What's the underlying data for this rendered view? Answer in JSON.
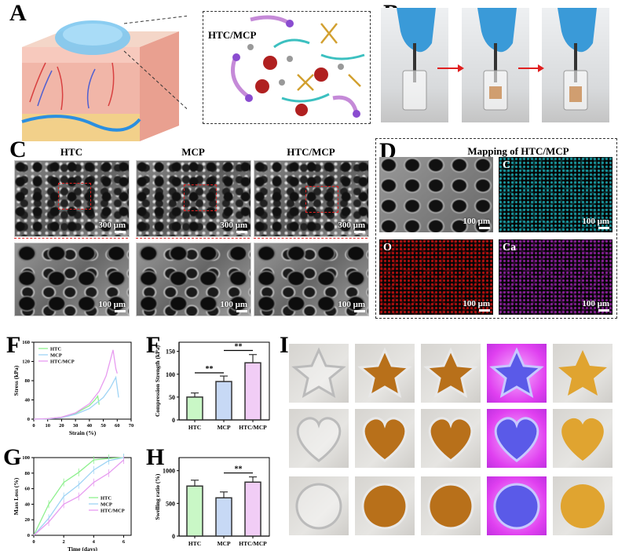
{
  "panels": {
    "A": "A",
    "B": "B",
    "C": "C",
    "D": "D",
    "F1": "F",
    "F2": "F",
    "G": "G",
    "H": "H",
    "I": "I"
  },
  "panel_a": {
    "inset_label": "HTC/MCP"
  },
  "panel_c": {
    "headers": [
      "HTC",
      "MCP",
      "HTC/MCP"
    ],
    "scale_top": "300 μm",
    "scale_bottom": "100 μm"
  },
  "panel_d": {
    "title": "Mapping of HTC/MCP",
    "maps": [
      {
        "element": "",
        "scale": "100 μm",
        "color": "#9a9a9a"
      },
      {
        "element": "C",
        "scale": "100 μm",
        "color": "#1aa0a8"
      },
      {
        "element": "O",
        "scale": "100 μm",
        "color": "#c01010"
      },
      {
        "element": "Ca",
        "scale": "100 μm",
        "color": "#9020a0"
      }
    ]
  },
  "panel_i": {
    "shapes": [
      "star",
      "heart",
      "circle"
    ],
    "columns": [
      "empty-mold",
      "filled-mold",
      "filled-mold",
      "uv-light",
      "demolded"
    ]
  },
  "colors": {
    "HTC": "#8ef08e",
    "MCP": "#9fd4f5",
    "HTC/MCP": "#e79cf0",
    "HTC_bar": "#c9f7c6",
    "MCP_bar": "#c7d9f5",
    "HTCMCP_bar": "#f1cdf6",
    "arrow": "#e02020"
  },
  "chart_data": [
    {
      "id": "F-stress-strain",
      "type": "line",
      "xlabel": "Strain (%)",
      "ylabel": "Stress (kPa)",
      "xlim": [
        0,
        70
      ],
      "ylim": [
        0,
        160
      ],
      "xticks": [
        0,
        10,
        20,
        30,
        40,
        50,
        60,
        70
      ],
      "yticks": [
        0,
        40,
        80,
        120,
        160
      ],
      "legend": "top-left",
      "series": [
        {
          "name": "HTC",
          "x": [
            0,
            10,
            20,
            30,
            40,
            44,
            46,
            47
          ],
          "y": [
            0,
            1,
            4,
            12,
            28,
            40,
            48,
            30
          ]
        },
        {
          "name": "MCP",
          "x": [
            0,
            10,
            20,
            30,
            40,
            50,
            55,
            59,
            61
          ],
          "y": [
            0,
            0.5,
            3,
            10,
            22,
            45,
            65,
            87,
            45
          ]
        },
        {
          "name": "HTC/MCP",
          "x": [
            0,
            10,
            20,
            30,
            40,
            47,
            52,
            57,
            59,
            60
          ],
          "y": [
            0,
            1,
            4,
            13,
            32,
            58,
            90,
            144,
            105,
            95
          ]
        }
      ]
    },
    {
      "id": "F-compression",
      "type": "bar",
      "ylabel": "Compression Strength (kPa)",
      "ylim": [
        0,
        170
      ],
      "yticks": [
        0,
        50,
        100,
        150
      ],
      "categories": [
        "HTC",
        "MCP",
        "HTC/MCP"
      ],
      "values": [
        50,
        84,
        125
      ],
      "errors": [
        9,
        12,
        18
      ],
      "significance": [
        {
          "pair": [
            0,
            1
          ],
          "label": "**",
          "level": 103
        },
        {
          "pair": [
            1,
            2
          ],
          "label": "**",
          "level": 152
        }
      ]
    },
    {
      "id": "G-mass-loss",
      "type": "line",
      "xlabel": "Time (days)",
      "ylabel": "Mass Loss (%)",
      "xlim": [
        0,
        6.5
      ],
      "ylim": [
        0,
        100
      ],
      "xticks": [
        0,
        2,
        4,
        6
      ],
      "yticks": [
        0,
        20,
        40,
        60,
        80,
        100
      ],
      "legend": "center-right",
      "series": [
        {
          "name": "HTC",
          "x": [
            0,
            1,
            2,
            3,
            4,
            5,
            6
          ],
          "y": [
            0,
            40,
            68,
            81,
            97,
            99,
            100
          ]
        },
        {
          "name": "MCP",
          "x": [
            0,
            1,
            2,
            3,
            4,
            5,
            6
          ],
          "y": [
            0,
            22,
            50,
            65,
            84,
            96,
            100
          ]
        },
        {
          "name": "HTC/MCP",
          "x": [
            0,
            1,
            2,
            3,
            4,
            5,
            6
          ],
          "y": [
            0,
            17,
            40,
            50,
            68,
            80,
            97
          ]
        }
      ]
    },
    {
      "id": "H-swelling",
      "type": "bar",
      "ylabel": "Swelling ratio (%)",
      "ylim": [
        0,
        1200
      ],
      "yticks": [
        0,
        500,
        1000
      ],
      "categories": [
        "HTC",
        "MCP",
        "HTC/MCP"
      ],
      "values": [
        765,
        585,
        825
      ],
      "errors": [
        90,
        90,
        80
      ],
      "significance": [
        {
          "pair": [
            1,
            2
          ],
          "label": "**",
          "level": 965
        }
      ]
    }
  ]
}
